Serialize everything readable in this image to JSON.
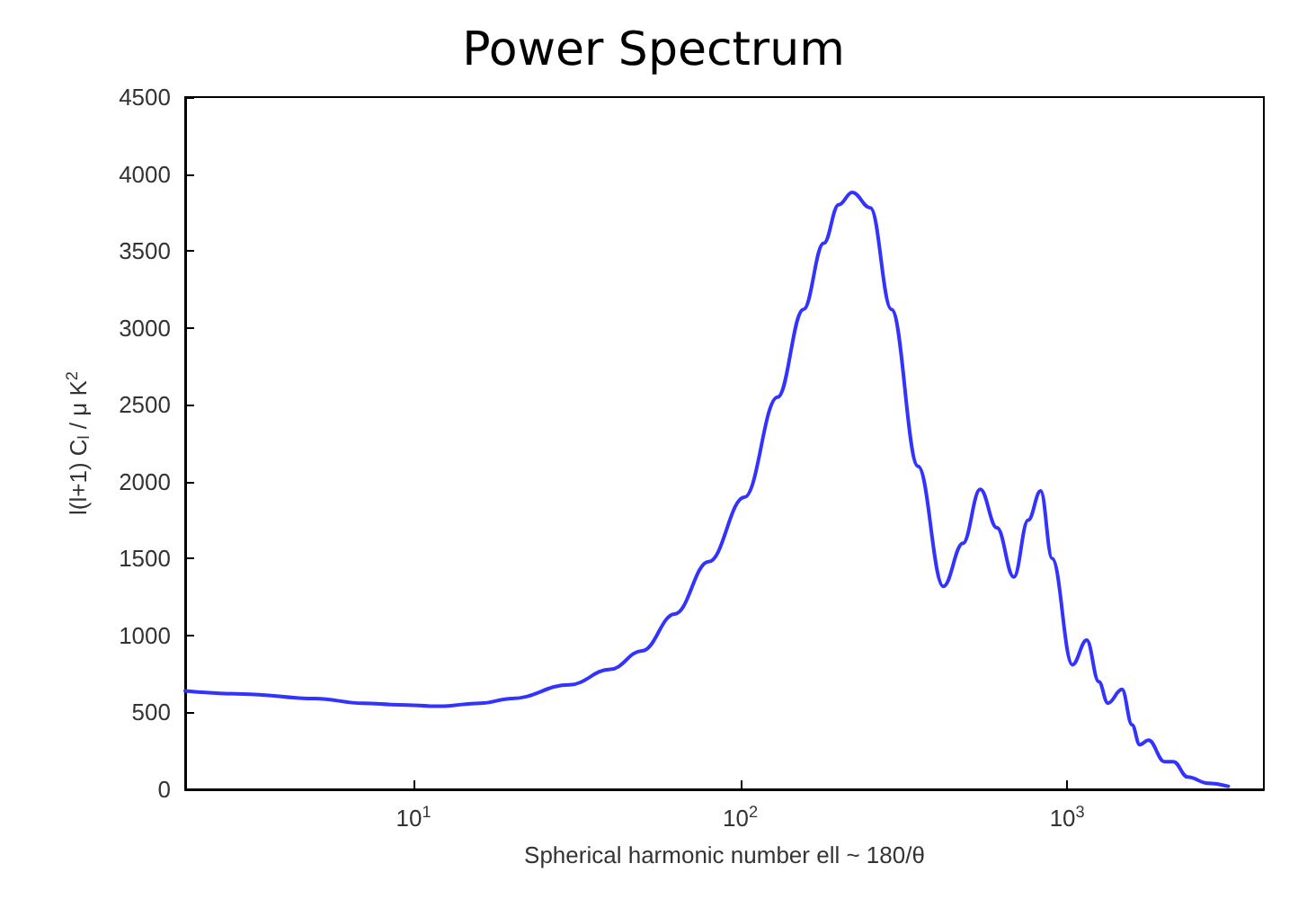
{
  "chart_data": {
    "type": "line",
    "title": "Power Spectrum",
    "xlabel": "Spherical harmonic number ell ~ 180/θ",
    "ylabel": "l(l+1) C$_{l}$ / μ K$^{2}$",
    "log": "x",
    "grid": false,
    "marker": "none",
    "line_style": "solid",
    "xlim": [
      2,
      4000
    ],
    "ylim": [
      0,
      4500
    ],
    "xticks": [
      {
        "value": 10,
        "label": "10$^{1}$"
      },
      {
        "value": 100,
        "label": "10$^{2}$"
      },
      {
        "value": 1000,
        "label": "10$^{3}$"
      }
    ],
    "yticks": [
      0,
      500,
      1000,
      1500,
      2000,
      2500,
      3000,
      3500,
      4000,
      4500
    ],
    "series": [
      {
        "color": "#3333ff",
        "x": [
          2,
          3,
          5,
          7,
          9,
          12,
          16,
          20,
          30,
          40,
          50,
          63,
          80,
          103,
          130,
          156,
          180,
          200,
          220,
          250,
          290,
          350,
          418,
          480,
          542,
          610,
          687,
          760,
          830,
          900,
          1038,
          1148,
          1250,
          1333,
          1472,
          1580,
          1668,
          1775,
          1986,
          2115,
          2338,
          2700,
          3113
        ],
        "values": [
          640,
          620,
          590,
          560,
          550,
          540,
          560,
          590,
          680,
          780,
          900,
          1140,
          1480,
          1900,
          2550,
          3120,
          3550,
          3800,
          3880,
          3780,
          3120,
          2100,
          1320,
          1600,
          1950,
          1700,
          1380,
          1750,
          1940,
          1500,
          810,
          970,
          700,
          560,
          650,
          420,
          290,
          320,
          180,
          180,
          80,
          40,
          20
        ]
      }
    ]
  }
}
